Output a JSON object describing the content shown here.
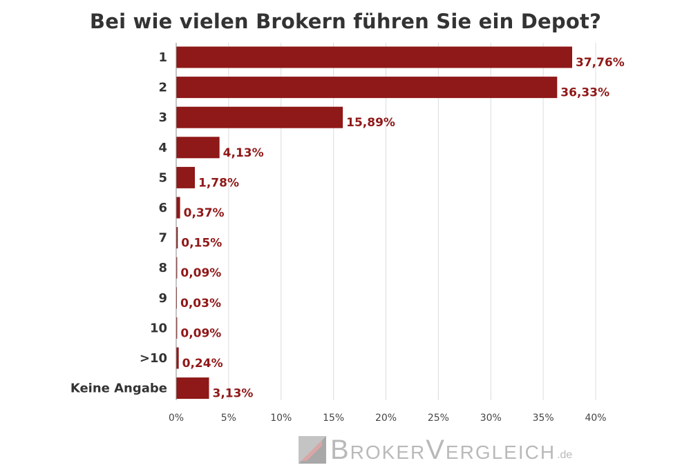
{
  "chart_data": {
    "type": "bar",
    "orientation": "horizontal",
    "title": "Bei wie vielen Brokern führen Sie ein Depot?",
    "categories": [
      "1",
      "2",
      "3",
      "4",
      "5",
      "6",
      "7",
      "8",
      "9",
      "10",
      ">10",
      "Keine Angabe"
    ],
    "values": [
      37.76,
      36.33,
      15.89,
      4.13,
      1.78,
      0.37,
      0.15,
      0.09,
      0.03,
      0.09,
      0.24,
      3.13
    ],
    "value_labels": [
      "37,76%",
      "36,33%",
      "15,89%",
      "4,13%",
      "1,78%",
      "0,37%",
      "0,15%",
      "0,09%",
      "0,03%",
      "0,09%",
      "0,24%",
      "3,13%"
    ],
    "xlim": [
      0,
      40
    ],
    "xticks": [
      0,
      5,
      10,
      15,
      20,
      25,
      30,
      35,
      40
    ],
    "xtick_labels": [
      "0%",
      "5%",
      "10%",
      "15%",
      "20%",
      "25%",
      "30%",
      "35%",
      "40%"
    ],
    "grid": "vertical",
    "bar_color": "#8f1818"
  },
  "branding": {
    "name": "BrokerVergleich",
    "tld": ".de",
    "logo_icon": "brokervergleich-logo-icon"
  }
}
